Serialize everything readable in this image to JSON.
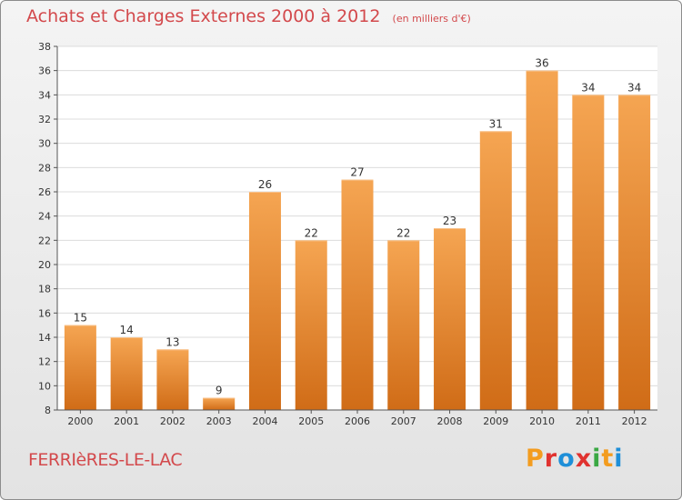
{
  "header": {
    "title": "Achats et Charges Externes 2000 à 2012",
    "subtitle": "(en milliers d'€)"
  },
  "footer": {
    "place": "FERRIèRES-LE-LAC",
    "logo_text": "Proxiti",
    "logo_colors": [
      "#f39c1f",
      "#e0322f",
      "#1e8fd8",
      "#e0322f",
      "#3aa843",
      "#f39c1f",
      "#1e8fd8"
    ]
  },
  "colors": {
    "bar_top": "#f5a552",
    "bar_bottom": "#d06c17",
    "accent": "#d3494c"
  },
  "chart_data": {
    "type": "bar",
    "title": "Achats et Charges Externes 2000 à 2012",
    "subtitle": "(en milliers d'€)",
    "categories": [
      "2000",
      "2001",
      "2002",
      "2003",
      "2004",
      "2005",
      "2006",
      "2007",
      "2008",
      "2009",
      "2010",
      "2011",
      "2012"
    ],
    "values": [
      15,
      14,
      13,
      9,
      26,
      22,
      27,
      22,
      23,
      31,
      36,
      34,
      34
    ],
    "ylim": [
      8,
      38
    ],
    "yticks": [
      8,
      10,
      12,
      14,
      16,
      18,
      20,
      22,
      24,
      26,
      28,
      30,
      32,
      34,
      36,
      38
    ],
    "grid": true,
    "data_labels": true,
    "xlabel": "",
    "ylabel": ""
  }
}
